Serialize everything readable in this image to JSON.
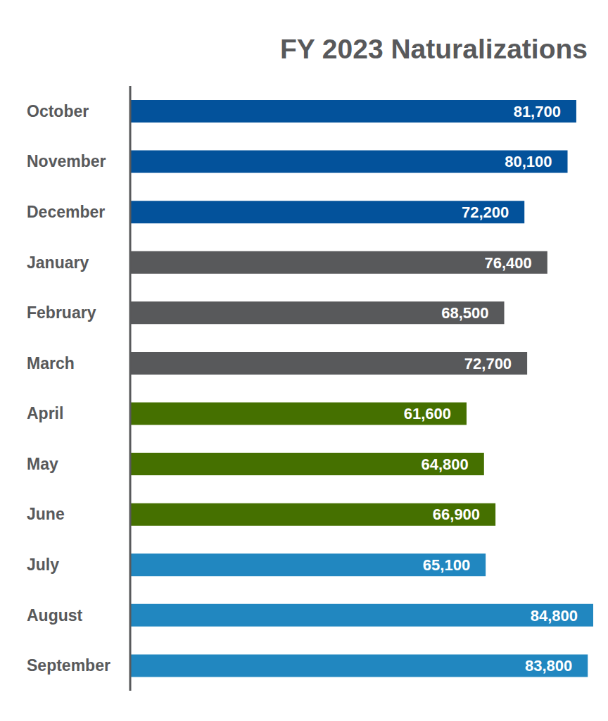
{
  "chart_data": {
    "type": "bar",
    "title": "FY 2023 Naturalizations",
    "orientation": "horizontal",
    "categories": [
      "October",
      "November",
      "December",
      "January",
      "February",
      "March",
      "April",
      "May",
      "June",
      "July",
      "August",
      "September"
    ],
    "values": [
      81700,
      80100,
      72200,
      76400,
      68500,
      72700,
      61600,
      64800,
      66900,
      65100,
      84800,
      83800
    ],
    "value_labels": [
      "81,700",
      "80,100",
      "72,200",
      "76,400",
      "68,500",
      "72,700",
      "61,600",
      "64,800",
      "66,900",
      "65,100",
      "84,800",
      "83,800"
    ],
    "colors": [
      "#03529b",
      "#03529b",
      "#03529b",
      "#58595b",
      "#58595b",
      "#58595b",
      "#457000",
      "#457000",
      "#457000",
      "#2187c0",
      "#2187c0",
      "#2187c0"
    ],
    "data_labels": true,
    "tick_labels": "y"
  }
}
